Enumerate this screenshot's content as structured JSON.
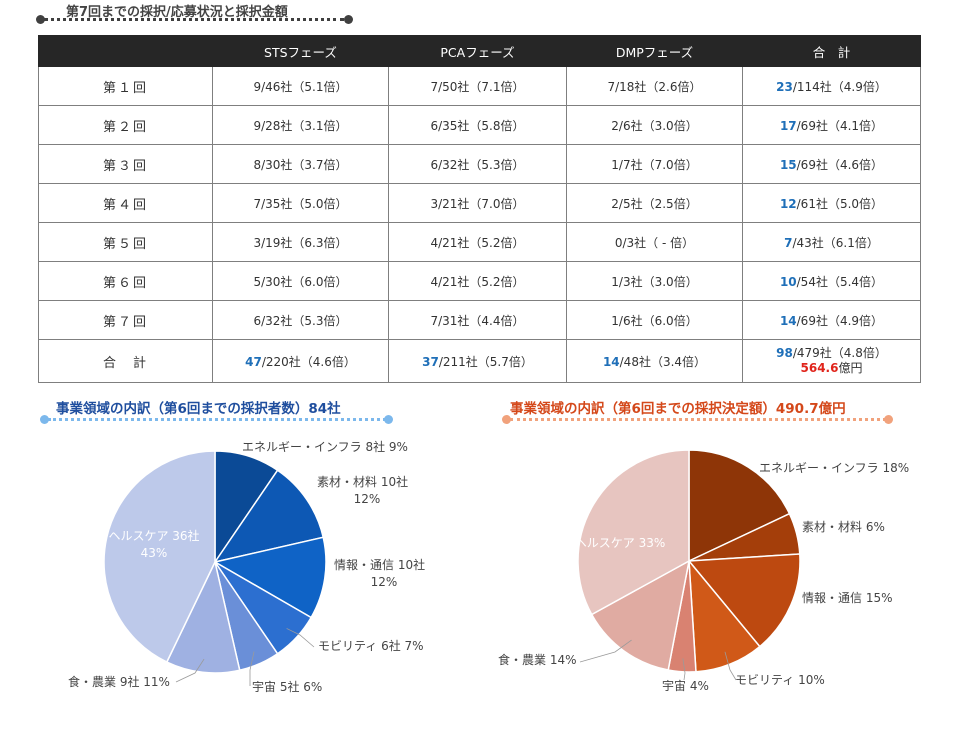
{
  "header": {
    "title": "第7回までの採択/応募状況と採択金額",
    "line_color": "#404040"
  },
  "table": {
    "columns": [
      "",
      "STSフェーズ",
      "PCAフェーズ",
      "DMPフェーズ",
      "合　計"
    ],
    "rows": [
      {
        "label": "第１回",
        "sts": "9/46社（5.1倍）",
        "pca": "7/50社（7.1倍）",
        "dmp": "7/18社（2.6倍）",
        "total_num": "23",
        "total_rest": "/114社（4.9倍）"
      },
      {
        "label": "第２回",
        "sts": "9/28社（3.1倍）",
        "pca": "6/35社（5.8倍）",
        "dmp": "2/6社（3.0倍）",
        "total_num": "17",
        "total_rest": "/69社（4.1倍）"
      },
      {
        "label": "第３回",
        "sts": "8/30社（3.7倍）",
        "pca": "6/32社（5.3倍）",
        "dmp": "1/7社（7.0倍）",
        "total_num": "15",
        "total_rest": "/69社（4.6倍）"
      },
      {
        "label": "第４回",
        "sts": "7/35社（5.0倍）",
        "pca": "3/21社（7.0倍）",
        "dmp": "2/5社（2.5倍）",
        "total_num": "12",
        "total_rest": "/61社（5.0倍）"
      },
      {
        "label": "第５回",
        "sts": "3/19社（6.3倍）",
        "pca": "4/21社（5.2倍）",
        "dmp": "0/3社（ - 倍）",
        "total_num": "7",
        "total_rest": "/43社（6.1倍）"
      },
      {
        "label": "第６回",
        "sts": "5/30社（6.0倍）",
        "pca": "4/21社（5.2倍）",
        "dmp": "1/3社（3.0倍）",
        "total_num": "10",
        "total_rest": "/54社（5.4倍）"
      },
      {
        "label": "第７回",
        "sts": "6/32社（5.3倍）",
        "pca": "7/31社（4.4倍）",
        "dmp": "1/6社（6.0倍）",
        "total_num": "14",
        "total_rest": "/69社（4.9倍）"
      }
    ],
    "total": {
      "label": "合　計",
      "sts_num": "47",
      "sts_rest": "/220社（4.6倍）",
      "pca_num": "37",
      "pca_rest": "/211社（5.7倍）",
      "dmp_num": "14",
      "dmp_rest": "/48社（3.4倍）",
      "total_num": "98",
      "total_rest": "/479社（4.8倍）",
      "amount_num": "564.6",
      "amount_unit": "億円"
    }
  },
  "colors": {
    "blue_title": "#1f4e9e",
    "blue_line": "#7cb8ec",
    "orange_title": "#d4481a",
    "orange_line": "#f1a27c"
  },
  "chart_data": [
    {
      "type": "pie",
      "title": "事業領域の内訳（第6回までの採択者数）84社",
      "start": "top, clockwise",
      "slices": [
        {
          "label": "エネルギー・インフラ 8社 9%",
          "value": 8,
          "percent": 9,
          "color": "#0b4a96"
        },
        {
          "label": "素材・材料 10社 12%",
          "value": 10,
          "percent": 12,
          "color": "#0d58b4"
        },
        {
          "label": "情報・通信 10社 12%",
          "value": 10,
          "percent": 12,
          "color": "#0f63c6"
        },
        {
          "label": "モビリティ 6社 7%",
          "value": 6,
          "percent": 7,
          "color": "#2c6fd0"
        },
        {
          "label": "宇宙 5社 6%",
          "value": 5,
          "percent": 6,
          "color": "#6a8fd8"
        },
        {
          "label": "食・農業 9社 11%",
          "value": 9,
          "percent": 11,
          "color": "#9fb1e2"
        },
        {
          "label": "ヘルスケア 36社 43%",
          "value": 36,
          "percent": 43,
          "color": "#bdc9ea"
        }
      ]
    },
    {
      "type": "pie",
      "title": "事業領域の内訳（第6回までの採択決定額）490.7億円",
      "start": "top, clockwise",
      "slices": [
        {
          "label": "エネルギー・インフラ 18%",
          "value": 18,
          "percent": 18,
          "color": "#8e3507"
        },
        {
          "label": "素材・材料 6%",
          "value": 6,
          "percent": 6,
          "color": "#a43e0a"
        },
        {
          "label": "情報・通信 15%",
          "value": 15,
          "percent": 15,
          "color": "#bd4910"
        },
        {
          "label": "モビリティ 10%",
          "value": 10,
          "percent": 10,
          "color": "#d05918"
        },
        {
          "label": "宇宙 4%",
          "value": 4,
          "percent": 4,
          "color": "#d98271"
        },
        {
          "label": "食・農業 14%",
          "value": 14,
          "percent": 14,
          "color": "#e0aba2"
        },
        {
          "label": "ヘルスケア 33%",
          "value": 33,
          "percent": 33,
          "color": "#e7c5c0"
        }
      ]
    }
  ]
}
